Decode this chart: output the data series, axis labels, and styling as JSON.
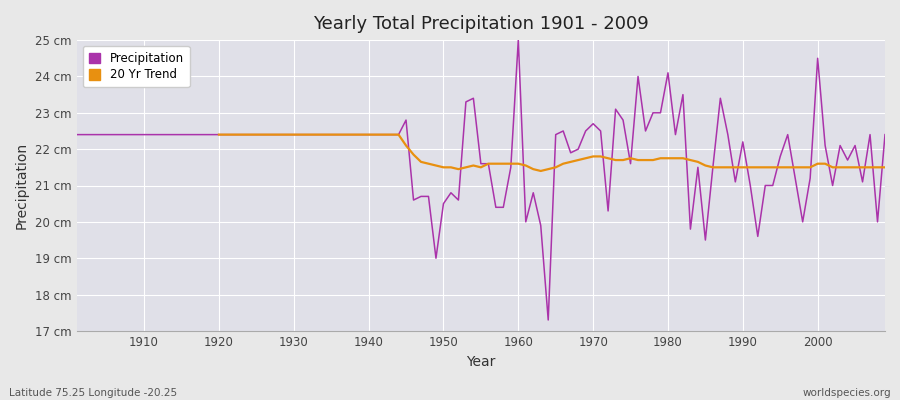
{
  "title": "Yearly Total Precipitation 1901 - 2009",
  "ylabel": "Precipitation",
  "xlabel": "Year",
  "subtitle": "Latitude 75.25 Longitude -20.25",
  "watermark": "worldspecies.org",
  "bg_color": "#e8e8e8",
  "plot_bg_color": "#e0e0e8",
  "precip_color": "#aa33aa",
  "trend_color": "#e89010",
  "ylim": [
    17,
    25
  ],
  "yticks": [
    17,
    18,
    19,
    20,
    21,
    22,
    23,
    24,
    25
  ],
  "xlim": [
    1901,
    2009
  ],
  "years": [
    1901,
    1902,
    1903,
    1904,
    1905,
    1906,
    1907,
    1908,
    1909,
    1910,
    1911,
    1912,
    1913,
    1914,
    1915,
    1916,
    1917,
    1918,
    1919,
    1920,
    1921,
    1922,
    1923,
    1924,
    1925,
    1926,
    1927,
    1928,
    1929,
    1930,
    1931,
    1932,
    1933,
    1934,
    1935,
    1936,
    1937,
    1938,
    1939,
    1940,
    1941,
    1942,
    1943,
    1944,
    1945,
    1946,
    1947,
    1948,
    1949,
    1950,
    1951,
    1952,
    1953,
    1954,
    1955,
    1956,
    1957,
    1958,
    1959,
    1960,
    1961,
    1962,
    1963,
    1964,
    1965,
    1966,
    1967,
    1968,
    1969,
    1970,
    1971,
    1972,
    1973,
    1974,
    1975,
    1976,
    1977,
    1978,
    1979,
    1980,
    1981,
    1982,
    1983,
    1984,
    1985,
    1986,
    1987,
    1988,
    1989,
    1990,
    1991,
    1992,
    1993,
    1994,
    1995,
    1996,
    1997,
    1998,
    1999,
    2000,
    2001,
    2002,
    2003,
    2004,
    2005,
    2006,
    2007,
    2008,
    2009
  ],
  "precip": [
    22.4,
    22.4,
    22.4,
    22.4,
    22.4,
    22.4,
    22.4,
    22.4,
    22.4,
    22.4,
    22.4,
    22.4,
    22.4,
    22.4,
    22.4,
    22.4,
    22.4,
    22.4,
    22.4,
    22.4,
    22.4,
    22.4,
    22.4,
    22.4,
    22.4,
    22.4,
    22.4,
    22.4,
    22.4,
    22.4,
    22.4,
    22.4,
    22.4,
    22.4,
    22.4,
    22.4,
    22.4,
    22.4,
    22.4,
    22.4,
    22.4,
    22.4,
    22.4,
    22.4,
    22.8,
    20.6,
    20.7,
    20.7,
    19.0,
    20.5,
    20.8,
    20.6,
    23.3,
    23.4,
    21.6,
    21.6,
    20.4,
    20.4,
    21.5,
    25.0,
    20.0,
    20.8,
    19.9,
    17.3,
    22.4,
    22.5,
    21.9,
    22.0,
    22.5,
    22.7,
    22.5,
    20.3,
    23.1,
    22.8,
    21.6,
    24.0,
    22.5,
    23.0,
    23.0,
    24.1,
    22.4,
    23.5,
    19.8,
    21.5,
    19.5,
    21.5,
    23.4,
    22.4,
    21.1,
    22.2,
    21.0,
    19.6,
    21.0,
    21.0,
    21.8,
    22.4,
    21.2,
    20.0,
    21.2,
    24.5,
    22.1,
    21.0,
    22.1,
    21.7,
    22.1,
    21.1,
    22.4,
    20.0,
    22.4
  ],
  "trend_years": [
    1920,
    1921,
    1922,
    1923,
    1924,
    1925,
    1926,
    1927,
    1928,
    1929,
    1930,
    1931,
    1932,
    1933,
    1934,
    1935,
    1936,
    1937,
    1938,
    1939,
    1940,
    1941,
    1942,
    1943,
    1944,
    1945,
    1946,
    1947,
    1948,
    1949,
    1950,
    1951,
    1952,
    1953,
    1954,
    1955,
    1956,
    1957,
    1958,
    1959,
    1960,
    1961,
    1962,
    1963,
    1964,
    1965,
    1966,
    1967,
    1968,
    1969,
    1970,
    1971,
    1972,
    1973,
    1974,
    1975,
    1976,
    1977,
    1978,
    1979,
    1980,
    1981,
    1982,
    1983,
    1984,
    1985,
    1986,
    1987,
    1988,
    1989,
    1990,
    1991,
    1992,
    1993,
    1994,
    1995,
    1996,
    1997,
    1998,
    1999,
    2000,
    2001,
    2002,
    2003,
    2004,
    2005,
    2006,
    2007,
    2008,
    2009
  ],
  "trend": [
    22.4,
    22.4,
    22.4,
    22.4,
    22.4,
    22.4,
    22.4,
    22.4,
    22.4,
    22.4,
    22.4,
    22.4,
    22.4,
    22.4,
    22.4,
    22.4,
    22.4,
    22.4,
    22.4,
    22.4,
    22.4,
    22.4,
    22.4,
    22.4,
    22.4,
    22.1,
    21.85,
    21.65,
    21.6,
    21.55,
    21.5,
    21.5,
    21.45,
    21.5,
    21.55,
    21.5,
    21.6,
    21.6,
    21.6,
    21.6,
    21.6,
    21.55,
    21.45,
    21.4,
    21.45,
    21.5,
    21.6,
    21.65,
    21.7,
    21.75,
    21.8,
    21.8,
    21.75,
    21.7,
    21.7,
    21.75,
    21.7,
    21.7,
    21.7,
    21.75,
    21.75,
    21.75,
    21.75,
    21.7,
    21.65,
    21.55,
    21.5,
    21.5,
    21.5,
    21.5,
    21.5,
    21.5,
    21.5,
    21.5,
    21.5,
    21.5,
    21.5,
    21.5,
    21.5,
    21.5,
    21.6,
    21.6,
    21.5,
    21.5,
    21.5,
    21.5,
    21.5,
    21.5,
    21.5,
    21.5
  ]
}
